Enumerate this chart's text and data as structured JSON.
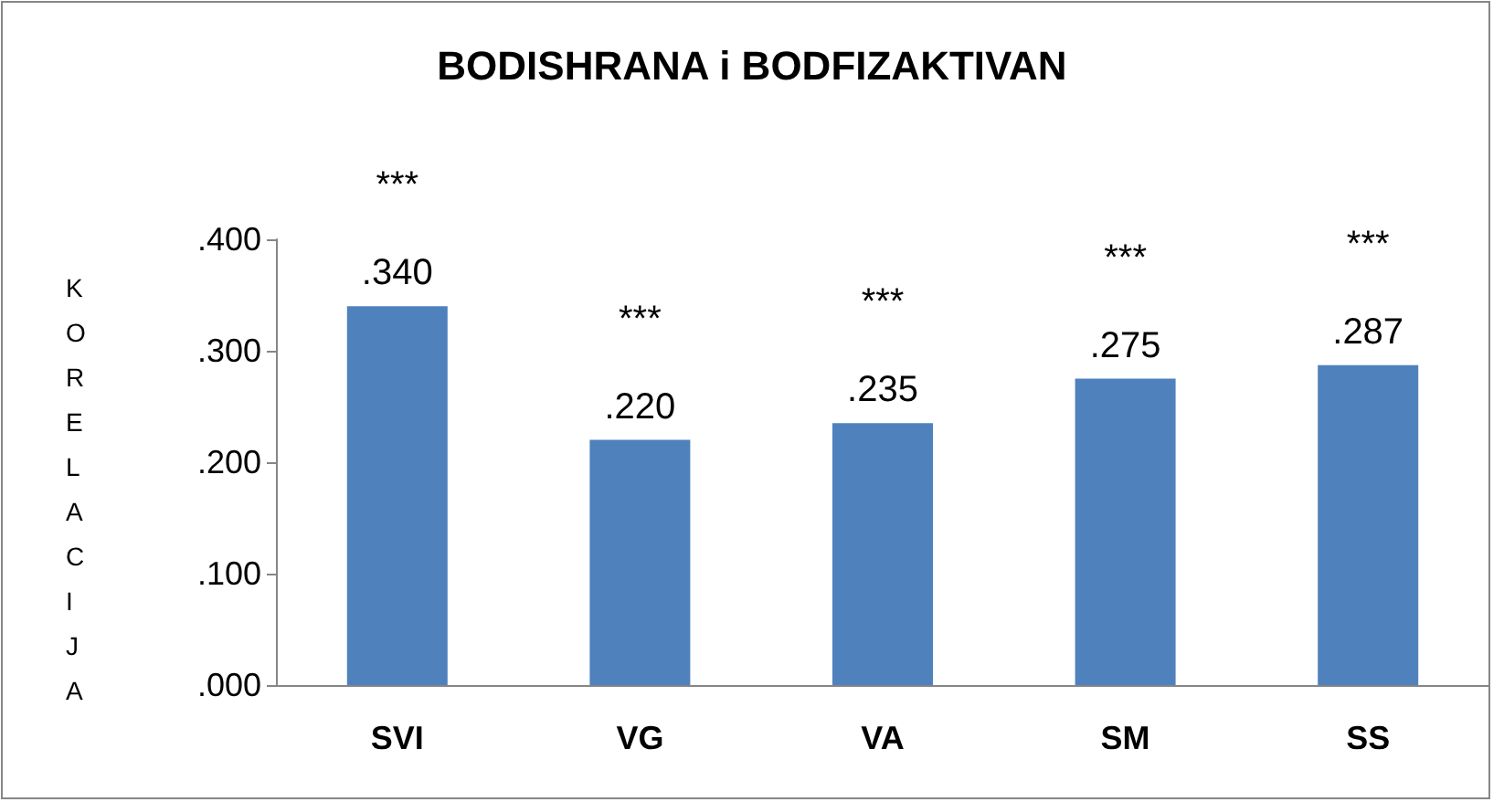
{
  "chart_data": {
    "type": "bar",
    "title": "BODISHRANA i BODFIZAKTIVAN",
    "ylabel": "KORELACIJA",
    "categories": [
      "SVI",
      "VG",
      "VA",
      "SM",
      "SS"
    ],
    "values": [
      0.34,
      0.22,
      0.235,
      0.275,
      0.287
    ],
    "value_labels": [
      ".340",
      ".220",
      ".235",
      ".275",
      ".287"
    ],
    "color": "#4f81bd",
    "ylim": [
      0,
      0.4
    ],
    "yticks": [
      {
        "value": 0,
        "label": ".000"
      },
      {
        "value": 0.1,
        "label": ".100"
      },
      {
        "value": 0.2,
        "label": ".200"
      },
      {
        "value": 0.3,
        "label": ".300"
      },
      {
        "value": 0.4,
        "label": ".400"
      }
    ],
    "annotations": [
      "***",
      "***",
      "***",
      "***",
      "***"
    ],
    "grid": false
  }
}
